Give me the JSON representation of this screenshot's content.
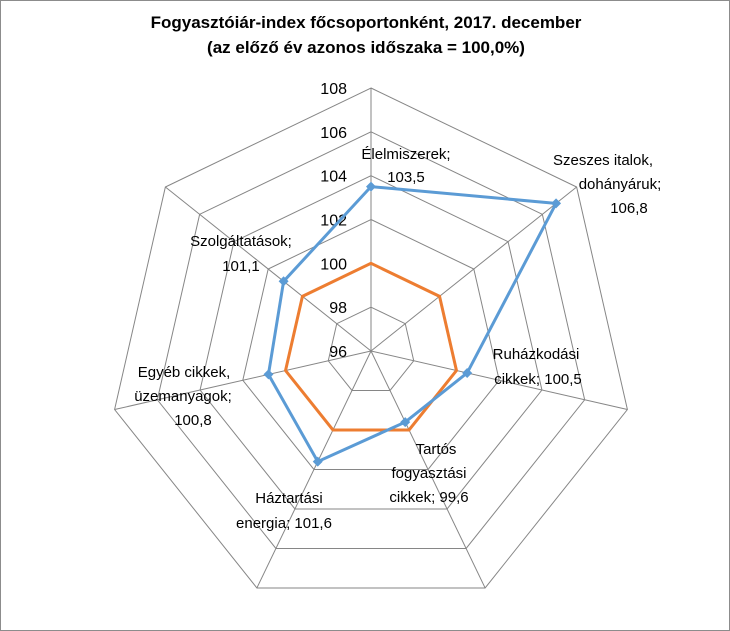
{
  "chart_data": {
    "type": "radar",
    "title": "Fogyasztóiár-index főcsoportonként, 2017. december",
    "subtitle": "(az előző év azonos időszaka = 100,0%)",
    "categories": [
      "Élelmiszerek",
      "Szeszes italok, dohányáruk",
      "Ruházkodási cikkek",
      "Tartós fogyasztási cikkek",
      "Háztartási energia",
      "Egyéb cikkek, üzemanyagok",
      "Szolgáltatások"
    ],
    "rlim": [
      96,
      108
    ],
    "ticks": [
      "96",
      "98",
      "100",
      "102",
      "104",
      "106",
      "108"
    ],
    "grid": true,
    "legend": "none",
    "series": [
      {
        "values": [
          103.5,
          106.8,
          100.5,
          99.6,
          101.6,
          100.8,
          101.1
        ],
        "color": "#5b9bd5",
        "markers": "diamond"
      },
      {
        "values": [
          100,
          100,
          100,
          100,
          100,
          100,
          100
        ],
        "color": "#ed7d31",
        "markers": "none"
      }
    ],
    "data_labels": [
      [
        "Élelmiszerek;",
        "103,5"
      ],
      [
        "Szeszes italok,",
        "dohányáruk;",
        "106,8"
      ],
      [
        "Ruházkodási",
        "cikkek; 100,5"
      ],
      [
        "Tartós",
        "fogyasztási",
        "cikkek; 99,6"
      ],
      [
        "Háztartási",
        "energia; 101,6"
      ],
      [
        "Egyéb cikkek,",
        "üzemanyagok;",
        "100,8"
      ],
      [
        "Szolgáltatások;",
        "101,1"
      ]
    ]
  }
}
